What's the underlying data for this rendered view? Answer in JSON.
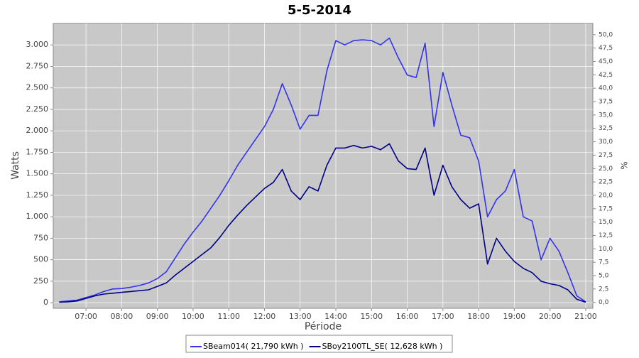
{
  "chart_data": {
    "type": "line",
    "title": "5-5-2014",
    "xlabel": "Période",
    "ylabel": "Watts",
    "y2label": "%",
    "x": [
      "06:15",
      "06:30",
      "06:45",
      "07:00",
      "07:15",
      "07:30",
      "07:45",
      "08:00",
      "08:15",
      "08:30",
      "08:45",
      "09:00",
      "09:15",
      "09:30",
      "09:45",
      "10:00",
      "10:15",
      "10:30",
      "10:45",
      "11:00",
      "11:15",
      "11:30",
      "11:45",
      "12:00",
      "12:15",
      "12:30",
      "12:45",
      "13:00",
      "13:15",
      "13:30",
      "13:45",
      "14:00",
      "14:15",
      "14:30",
      "14:45",
      "15:00",
      "15:15",
      "15:30",
      "15:45",
      "16:00",
      "16:15",
      "16:30",
      "16:45",
      "17:00",
      "17:15",
      "17:30",
      "17:45",
      "18:00",
      "18:15",
      "18:30",
      "18:45",
      "19:00",
      "19:15",
      "19:30",
      "19:45",
      "20:00",
      "20:15",
      "20:30",
      "20:45",
      "21:00"
    ],
    "series": [
      {
        "name": "SBeam014( 21,790 kWh )",
        "color": "#3333ee",
        "values": [
          10,
          20,
          30,
          60,
          90,
          130,
          160,
          165,
          180,
          200,
          230,
          280,
          360,
          520,
          680,
          820,
          950,
          1100,
          1250,
          1420,
          1600,
          1750,
          1900,
          2050,
          2250,
          2550,
          2300,
          2020,
          2180,
          2180,
          2700,
          3050,
          3000,
          3050,
          3060,
          3050,
          3000,
          3080,
          2850,
          2650,
          2620,
          3020,
          2050,
          2680,
          2300,
          1950,
          1920,
          1650,
          1000,
          1200,
          1300,
          1550,
          1000,
          950,
          500,
          750,
          600,
          350,
          80,
          10
        ]
      },
      {
        "name": "SBoy2100TL_SE( 12,628 kWh )",
        "color": "#000088",
        "values": [
          5,
          10,
          20,
          50,
          80,
          100,
          110,
          120,
          130,
          140,
          150,
          190,
          230,
          320,
          400,
          480,
          560,
          640,
          760,
          900,
          1020,
          1130,
          1230,
          1330,
          1400,
          1550,
          1300,
          1200,
          1350,
          1300,
          1600,
          1800,
          1800,
          1830,
          1800,
          1820,
          1780,
          1850,
          1650,
          1560,
          1550,
          1800,
          1250,
          1600,
          1350,
          1200,
          1100,
          1150,
          450,
          750,
          600,
          480,
          400,
          350,
          250,
          220,
          200,
          150,
          40,
          5
        ]
      }
    ],
    "xlim": [
      "06:05",
      "21:12"
    ],
    "xticks": [
      "07:00",
      "08:00",
      "09:00",
      "10:00",
      "11:00",
      "12:00",
      "13:00",
      "14:00",
      "15:00",
      "16:00",
      "17:00",
      "18:00",
      "19:00",
      "20:00",
      "21:00"
    ],
    "ylim": [
      -65,
      3250
    ],
    "yticks": [
      0,
      250,
      500,
      750,
      {
        "value": 1000,
        "label": "1.000"
      },
      {
        "value": 1250,
        "label": "1.250"
      },
      {
        "value": 1500,
        "label": "1.500"
      },
      {
        "value": 1750,
        "label": "1.750"
      },
      {
        "value": 2000,
        "label": "2.000"
      },
      {
        "value": 2250,
        "label": "2.250"
      },
      {
        "value": 2500,
        "label": "2.500"
      },
      {
        "value": 2750,
        "label": "2.750"
      },
      {
        "value": 3000,
        "label": "3.000"
      }
    ],
    "y2lim": [
      -1.1,
      52.1
    ],
    "y2ticks": [
      {
        "value": 0,
        "label": "0,0"
      },
      {
        "value": 2.5,
        "label": "2,5"
      },
      {
        "value": 5,
        "label": "5,0"
      },
      {
        "value": 7.5,
        "label": "7,5"
      },
      {
        "value": 10,
        "label": "10,0"
      },
      {
        "value": 12.5,
        "label": "12,5"
      },
      {
        "value": 15,
        "label": "15,0"
      },
      {
        "value": 17.5,
        "label": "17,5"
      },
      {
        "value": 20,
        "label": "20,0"
      },
      {
        "value": 22.5,
        "label": "22,5"
      },
      {
        "value": 25,
        "label": "25,0"
      },
      {
        "value": 27.5,
        "label": "27,5"
      },
      {
        "value": 30,
        "label": "30,0"
      },
      {
        "value": 32.5,
        "label": "32,5"
      },
      {
        "value": 35,
        "label": "35,0"
      },
      {
        "value": 37.5,
        "label": "37,5"
      },
      {
        "value": 40,
        "label": "40,0"
      },
      {
        "value": 42.5,
        "label": "42,5"
      },
      {
        "value": 45,
        "label": "45,0"
      },
      {
        "value": 47.5,
        "label": "47,5"
      },
      {
        "value": 50,
        "label": "50,0"
      }
    ],
    "grid": true,
    "background": "#c8c8c8",
    "legend": "bottom"
  }
}
